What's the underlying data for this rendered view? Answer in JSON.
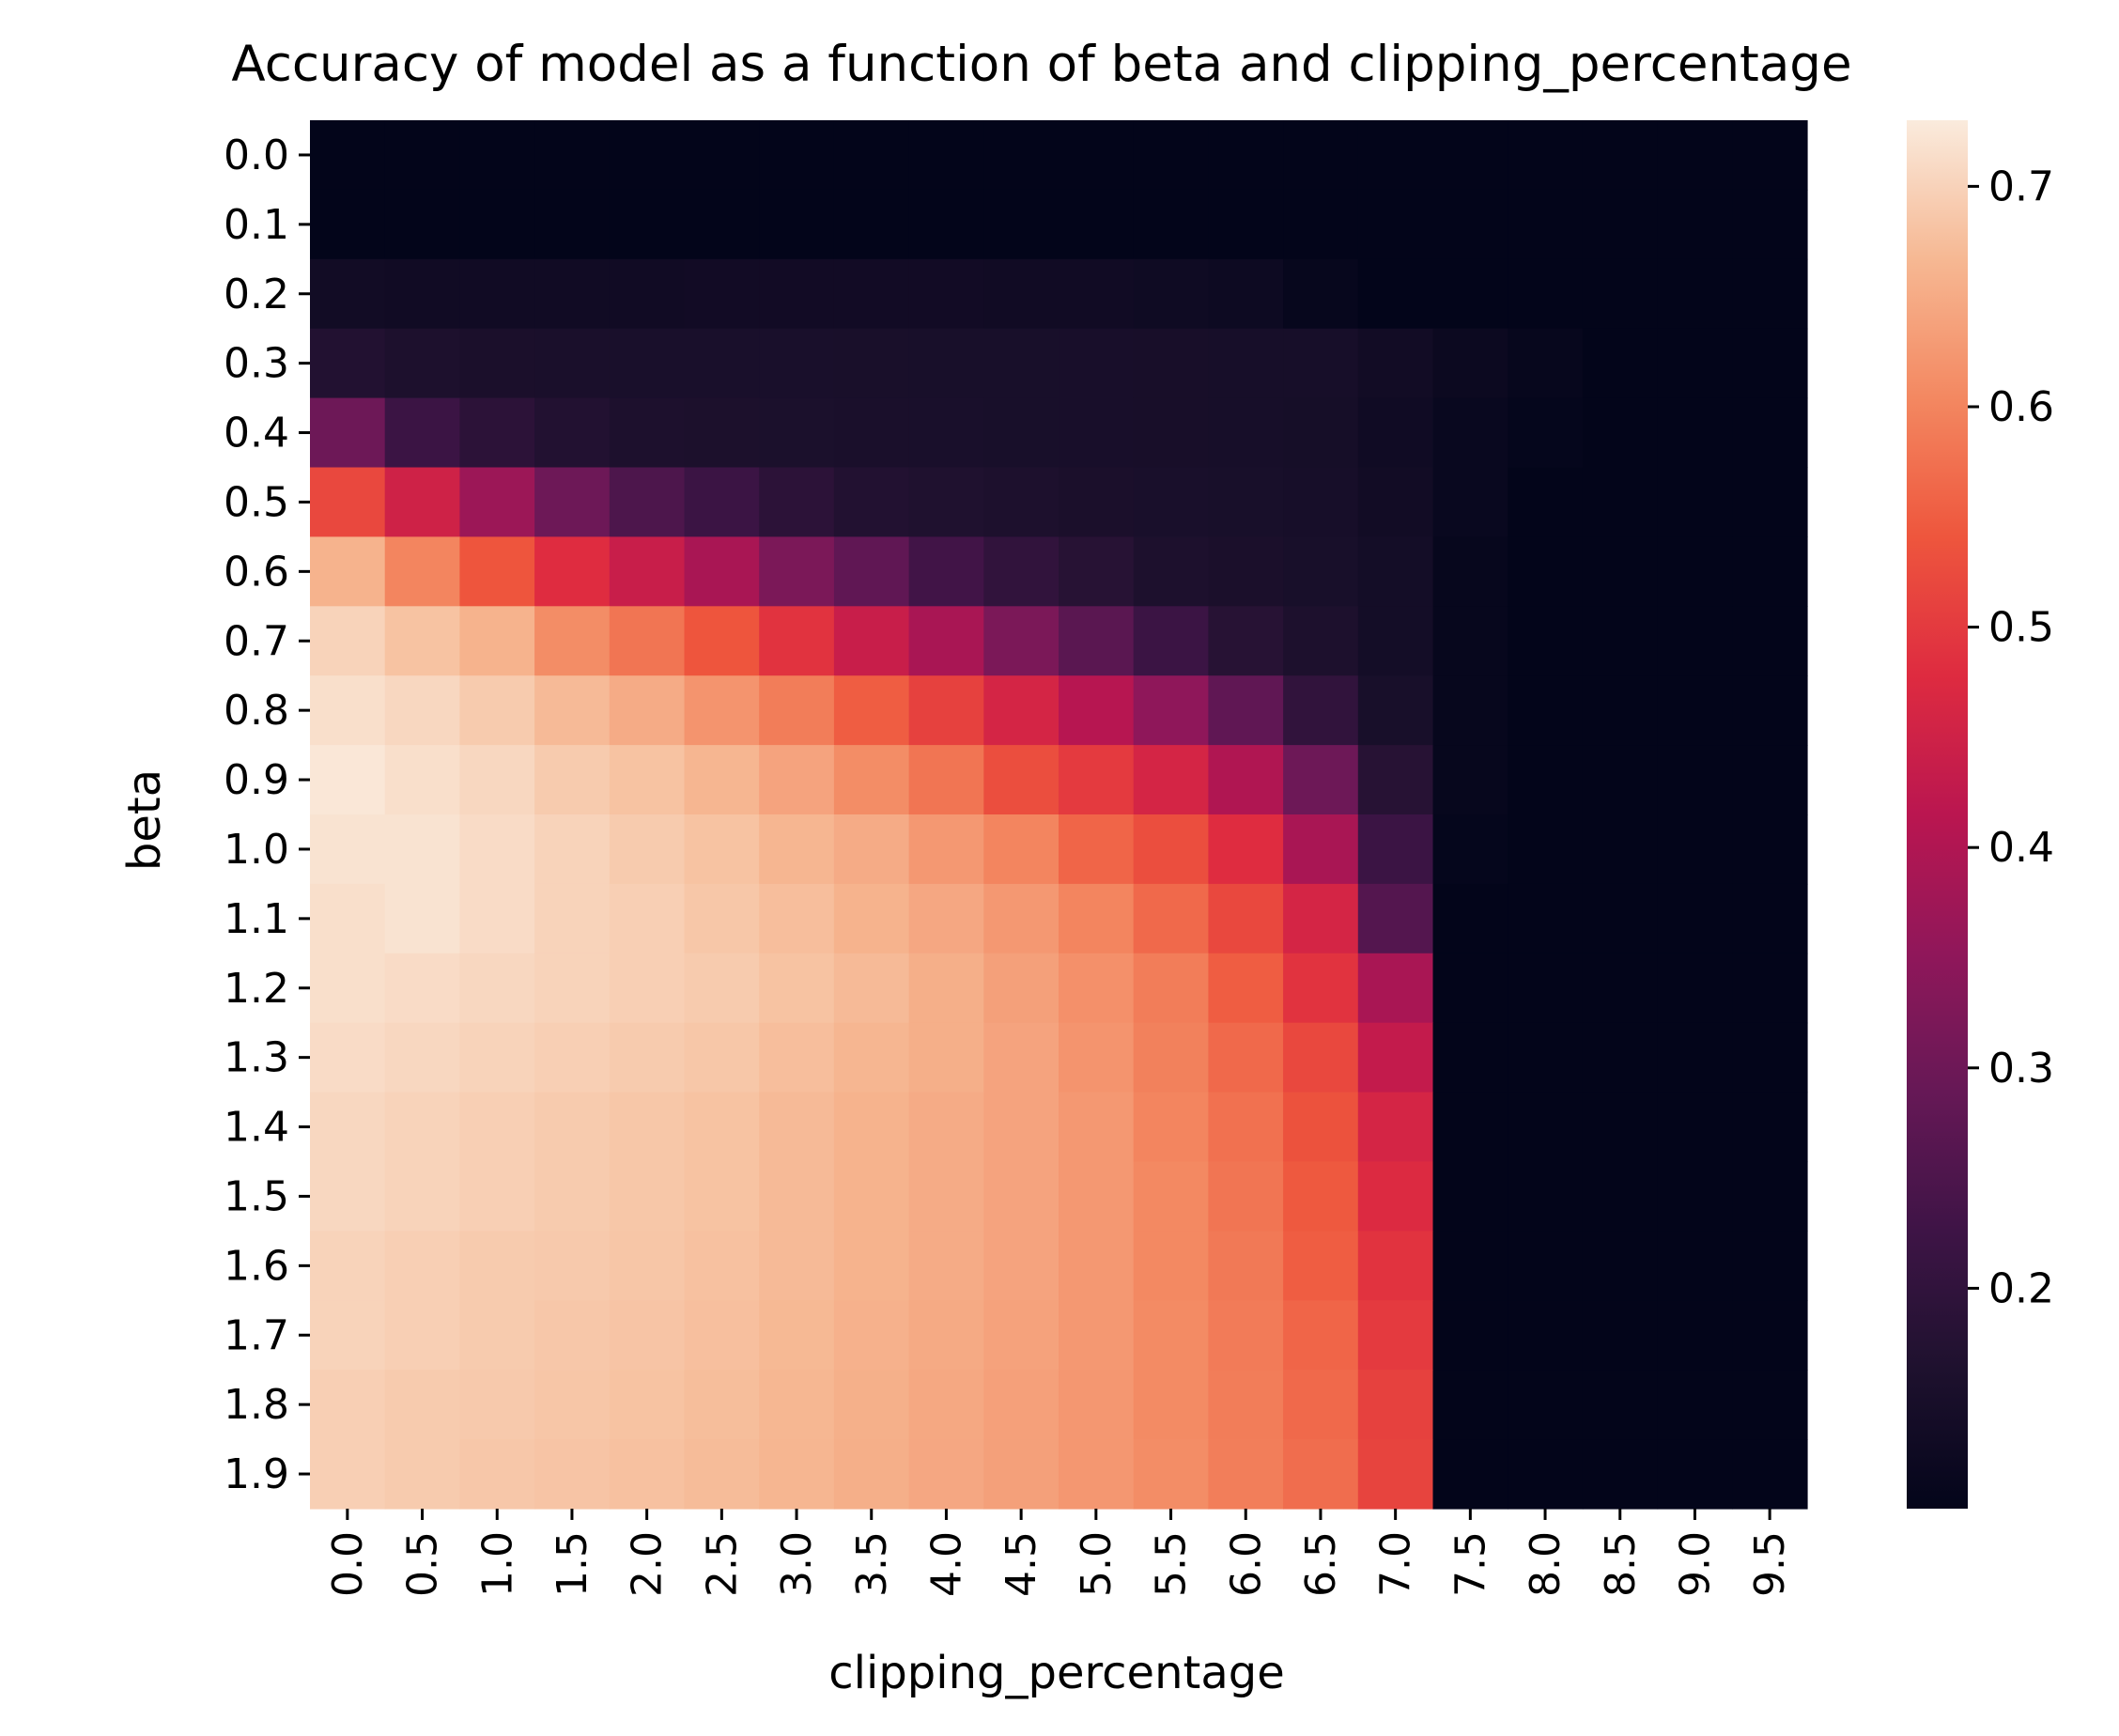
{
  "chart_data": {
    "type": "heatmap",
    "title": "Accuracy of model as a function of beta and clipping_percentage",
    "xlabel": "clipping_percentage",
    "ylabel": "beta",
    "x": [
      "0.0",
      "0.5",
      "1.0",
      "1.5",
      "2.0",
      "2.5",
      "3.0",
      "3.5",
      "4.0",
      "4.5",
      "5.0",
      "5.5",
      "6.0",
      "6.5",
      "7.0",
      "7.5",
      "8.0",
      "8.5",
      "9.0",
      "9.5"
    ],
    "y": [
      "0.0",
      "0.1",
      "0.2",
      "0.3",
      "0.4",
      "0.5",
      "0.6",
      "0.7",
      "0.8",
      "0.9",
      "1.0",
      "1.1",
      "1.2",
      "1.3",
      "1.4",
      "1.5",
      "1.6",
      "1.7",
      "1.8",
      "1.9"
    ],
    "values": [
      [
        0.1,
        0.1,
        0.1,
        0.1,
        0.1,
        0.1,
        0.1,
        0.1,
        0.1,
        0.1,
        0.1,
        0.1,
        0.1,
        0.1,
        0.1,
        0.1,
        0.1,
        0.1,
        0.1,
        0.1
      ],
      [
        0.1,
        0.1,
        0.1,
        0.1,
        0.1,
        0.1,
        0.1,
        0.1,
        0.1,
        0.1,
        0.1,
        0.1,
        0.1,
        0.1,
        0.1,
        0.1,
        0.1,
        0.1,
        0.1,
        0.1
      ],
      [
        0.135,
        0.133,
        0.133,
        0.133,
        0.133,
        0.134,
        0.134,
        0.134,
        0.134,
        0.133,
        0.132,
        0.129,
        0.124,
        0.11,
        0.1,
        0.1,
        0.1,
        0.1,
        0.1,
        0.1
      ],
      [
        0.17,
        0.16,
        0.155,
        0.153,
        0.152,
        0.152,
        0.152,
        0.151,
        0.15,
        0.15,
        0.149,
        0.148,
        0.147,
        0.146,
        0.135,
        0.12,
        0.11,
        0.1,
        0.1,
        0.1
      ],
      [
        0.3,
        0.22,
        0.19,
        0.17,
        0.16,
        0.158,
        0.156,
        0.154,
        0.152,
        0.15,
        0.149,
        0.148,
        0.147,
        0.145,
        0.13,
        0.115,
        0.105,
        0.1,
        0.1,
        0.1
      ],
      [
        0.52,
        0.45,
        0.37,
        0.3,
        0.25,
        0.22,
        0.19,
        0.17,
        0.165,
        0.16,
        0.155,
        0.152,
        0.15,
        0.147,
        0.135,
        0.115,
        0.1,
        0.1,
        0.1,
        0.1
      ],
      [
        0.66,
        0.6,
        0.54,
        0.48,
        0.44,
        0.39,
        0.32,
        0.28,
        0.23,
        0.2,
        0.18,
        0.16,
        0.155,
        0.15,
        0.14,
        0.11,
        0.1,
        0.1,
        0.1,
        0.1
      ],
      [
        0.7,
        0.68,
        0.66,
        0.61,
        0.58,
        0.54,
        0.49,
        0.44,
        0.39,
        0.32,
        0.27,
        0.22,
        0.18,
        0.16,
        0.14,
        0.11,
        0.1,
        0.1,
        0.1,
        0.1
      ],
      [
        0.715,
        0.705,
        0.69,
        0.67,
        0.65,
        0.62,
        0.59,
        0.55,
        0.51,
        0.46,
        0.41,
        0.35,
        0.28,
        0.2,
        0.15,
        0.11,
        0.1,
        0.1,
        0.1,
        0.1
      ],
      [
        0.725,
        0.715,
        0.705,
        0.69,
        0.68,
        0.665,
        0.64,
        0.61,
        0.58,
        0.53,
        0.5,
        0.46,
        0.4,
        0.3,
        0.18,
        0.11,
        0.1,
        0.1,
        0.1,
        0.1
      ],
      [
        0.72,
        0.72,
        0.71,
        0.7,
        0.69,
        0.68,
        0.665,
        0.65,
        0.625,
        0.6,
        0.56,
        0.53,
        0.48,
        0.39,
        0.22,
        0.105,
        0.1,
        0.1,
        0.1,
        0.1
      ],
      [
        0.715,
        0.72,
        0.71,
        0.7,
        0.695,
        0.685,
        0.675,
        0.66,
        0.645,
        0.625,
        0.6,
        0.565,
        0.52,
        0.46,
        0.26,
        0.1,
        0.1,
        0.1,
        0.1,
        0.1
      ],
      [
        0.715,
        0.71,
        0.705,
        0.7,
        0.695,
        0.69,
        0.68,
        0.67,
        0.655,
        0.635,
        0.615,
        0.59,
        0.55,
        0.49,
        0.39,
        0.1,
        0.1,
        0.1,
        0.1,
        0.1
      ],
      [
        0.71,
        0.705,
        0.7,
        0.695,
        0.69,
        0.685,
        0.675,
        0.665,
        0.655,
        0.64,
        0.62,
        0.595,
        0.565,
        0.52,
        0.43,
        0.1,
        0.1,
        0.1,
        0.1,
        0.1
      ],
      [
        0.705,
        0.7,
        0.695,
        0.69,
        0.685,
        0.68,
        0.67,
        0.66,
        0.65,
        0.64,
        0.625,
        0.6,
        0.575,
        0.535,
        0.46,
        0.1,
        0.1,
        0.1,
        0.1,
        0.1
      ],
      [
        0.705,
        0.7,
        0.695,
        0.69,
        0.685,
        0.68,
        0.67,
        0.66,
        0.65,
        0.64,
        0.625,
        0.605,
        0.58,
        0.545,
        0.475,
        0.1,
        0.1,
        0.1,
        0.1,
        0.1
      ],
      [
        0.7,
        0.695,
        0.69,
        0.688,
        0.684,
        0.678,
        0.67,
        0.66,
        0.65,
        0.64,
        0.625,
        0.605,
        0.585,
        0.55,
        0.49,
        0.1,
        0.1,
        0.1,
        0.1,
        0.1
      ],
      [
        0.7,
        0.695,
        0.69,
        0.686,
        0.682,
        0.676,
        0.668,
        0.658,
        0.648,
        0.638,
        0.625,
        0.608,
        0.588,
        0.56,
        0.5,
        0.1,
        0.1,
        0.1,
        0.1,
        0.1
      ],
      [
        0.695,
        0.69,
        0.688,
        0.684,
        0.68,
        0.674,
        0.666,
        0.656,
        0.646,
        0.636,
        0.624,
        0.608,
        0.59,
        0.565,
        0.51,
        0.1,
        0.1,
        0.1,
        0.1,
        0.1
      ],
      [
        0.695,
        0.69,
        0.686,
        0.682,
        0.678,
        0.672,
        0.664,
        0.655,
        0.645,
        0.635,
        0.624,
        0.61,
        0.592,
        0.57,
        0.515,
        0.1,
        0.1,
        0.1,
        0.1,
        0.1
      ]
    ],
    "colorbar": {
      "colormap": "rocket",
      "vmin": 0.1,
      "vmax": 0.73,
      "ticks": [
        0.2,
        0.3,
        0.4,
        0.5,
        0.6,
        0.7
      ],
      "tick_labels": [
        "0.2",
        "0.3",
        "0.4",
        "0.5",
        "0.6",
        "0.7"
      ]
    }
  }
}
